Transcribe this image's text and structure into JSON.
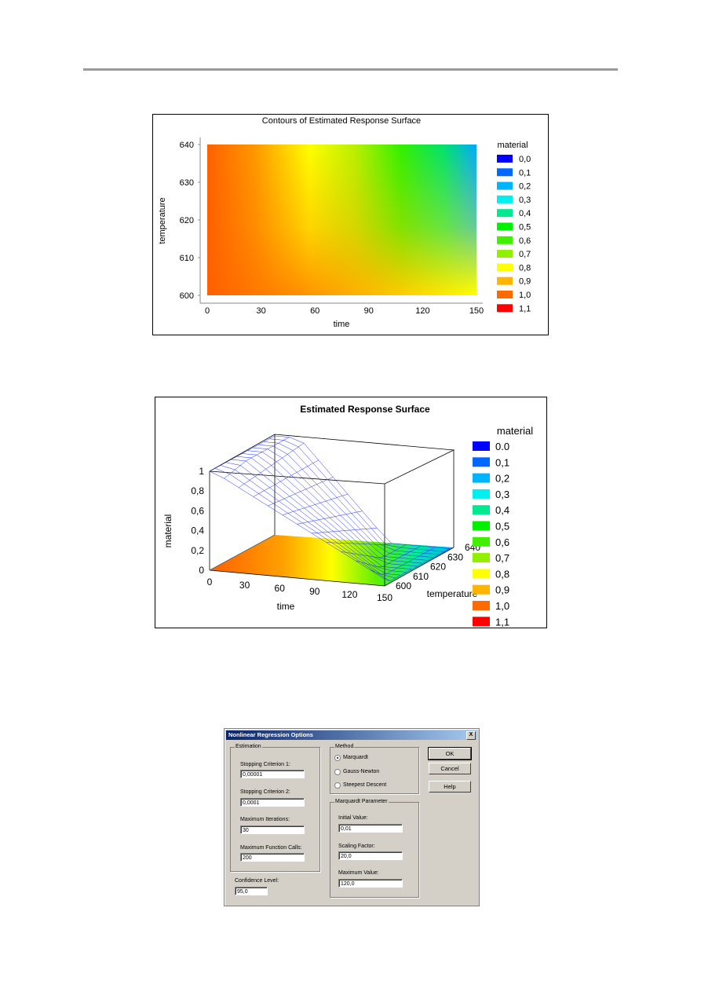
{
  "chart_data": [
    {
      "type": "heatmap",
      "title": "Contours of Estimated Response Surface",
      "xlabel": "time",
      "ylabel": "temperature",
      "xlim": [
        0,
        150
      ],
      "ylim": [
        600,
        640
      ],
      "xticks": [
        "0",
        "30",
        "60",
        "90",
        "120",
        "150"
      ],
      "yticks": [
        "600",
        "610",
        "620",
        "630",
        "640"
      ],
      "legend_title": "material",
      "legend": [
        {
          "label": "0,0",
          "color": "#0000ff"
        },
        {
          "label": "0,1",
          "color": "#0068ff"
        },
        {
          "label": "0,2",
          "color": "#00b4ff"
        },
        {
          "label": "0,3",
          "color": "#00f0f0"
        },
        {
          "label": "0,4",
          "color": "#00e890"
        },
        {
          "label": "0,5",
          "color": "#00f000"
        },
        {
          "label": "0,6",
          "color": "#40f000"
        },
        {
          "label": "0,7",
          "color": "#90f000"
        },
        {
          "label": "0,8",
          "color": "#ffff00"
        },
        {
          "label": "0,9",
          "color": "#ffb400"
        },
        {
          "label": "1,0",
          "color": "#ff6a00"
        },
        {
          "label": "1,1",
          "color": "#ff0000"
        }
      ]
    },
    {
      "type": "surface",
      "title": "Estimated Response Surface",
      "xlabel": "time",
      "ylabel": "temperature",
      "zlabel": "material",
      "xticks": [
        "0",
        "30",
        "60",
        "90",
        "120",
        "150"
      ],
      "yticks": [
        "600",
        "610",
        "620",
        "630",
        "640"
      ],
      "zticks": [
        "0",
        "0,2",
        "0,4",
        "0,6",
        "0,8",
        "1"
      ],
      "legend_title": "material",
      "legend": [
        {
          "label": "0.0",
          "color": "#0000ff"
        },
        {
          "label": "0,1",
          "color": "#0068ff"
        },
        {
          "label": "0,2",
          "color": "#00b4ff"
        },
        {
          "label": "0,3",
          "color": "#00f0f0"
        },
        {
          "label": "0,4",
          "color": "#00e890"
        },
        {
          "label": "0,5",
          "color": "#00f000"
        },
        {
          "label": "0,6",
          "color": "#40f000"
        },
        {
          "label": "0,7",
          "color": "#90f000"
        },
        {
          "label": "0,8",
          "color": "#ffff00"
        },
        {
          "label": "0,9",
          "color": "#ffb400"
        },
        {
          "label": "1,0",
          "color": "#ff6a00"
        },
        {
          "label": "1,1",
          "color": "#ff0000"
        }
      ]
    }
  ],
  "dialog": {
    "title": "Nonlinear Regression Options",
    "close": "X",
    "estimation": {
      "group": "Estimation",
      "stop1_label": "Stopping Criterion 1:",
      "stop1_value": "0,00001",
      "stop2_label": "Stopping Criterion 2:",
      "stop2_value": "0,0001",
      "maxiter_label": "Maximum Iterations:",
      "maxiter_value": "30",
      "maxfunc_label": "Maximum Function Calls:",
      "maxfunc_value": "200"
    },
    "confidence_label": "Confidence Level:",
    "confidence_value": "95,0",
    "method": {
      "group": "Method",
      "options": [
        "Marquardt",
        "Gauss-Newton",
        "Steepest Descent"
      ],
      "selected": "Marquardt"
    },
    "marquardt": {
      "group": "Marquardt Parameter",
      "initial_label": "Initial Value:",
      "initial_value": "0,01",
      "scaling_label": "Scaling Factor:",
      "scaling_value": "20,0",
      "maximum_label": "Maximum Value:",
      "maximum_value": "120,0"
    },
    "buttons": {
      "ok": "OK",
      "cancel": "Cancel",
      "help": "Help"
    }
  }
}
